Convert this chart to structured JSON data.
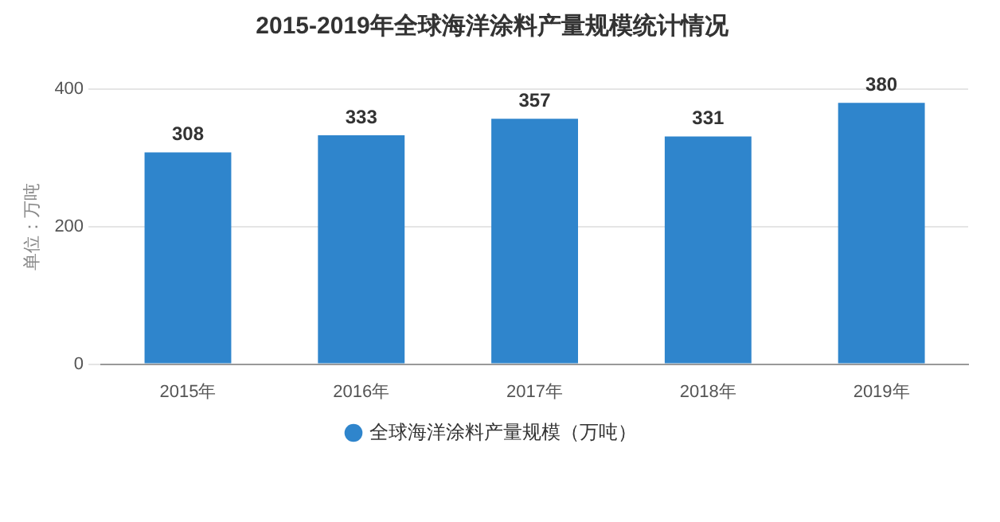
{
  "chart_data": {
    "type": "bar",
    "title": "2015-2019年全球海洋涂料产量规模统计情况",
    "ylabel": "单位：万吨",
    "categories": [
      "2015年",
      "2016年",
      "2017年",
      "2018年",
      "2019年"
    ],
    "series": [
      {
        "name": "全球海洋涂料产量规模（万吨）",
        "color": "#2f85cc",
        "values": [
          308,
          333,
          357,
          331,
          380
        ]
      }
    ],
    "ylim": [
      0,
      400
    ],
    "yticks": [
      0,
      200,
      400
    ],
    "grid": "y",
    "legend": "bottom",
    "data_labels": true
  }
}
